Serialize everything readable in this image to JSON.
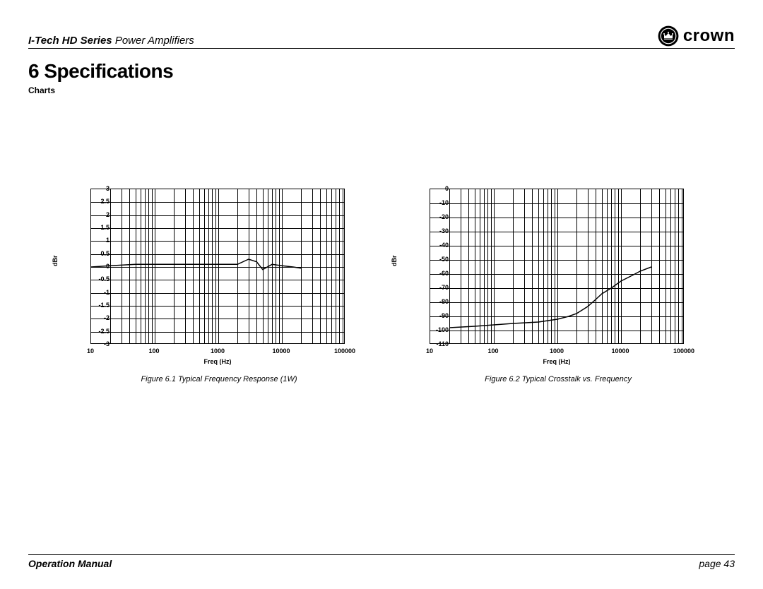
{
  "header": {
    "series": "I-Tech HD Series",
    "subtitle": "Power Amplifiers",
    "brand": "crown"
  },
  "section": {
    "number": "6",
    "title": "Specifications",
    "sub": "Charts"
  },
  "chart1": {
    "type": "line",
    "caption": "Figure 6.1 Typical Frequency Response (1W)",
    "ylabel": "dBr",
    "xlabel": "Freq (Hz)",
    "ylim": [
      -3,
      3
    ],
    "ytick_step": 0.5,
    "yticks": [
      "3",
      "2.5",
      "2",
      "1.5",
      "1",
      "0.5",
      "0",
      "-0.5",
      "-1",
      "-1.5",
      "-2",
      "-2.5",
      "-3"
    ],
    "xticks": [
      "10",
      "100",
      "1000",
      "10000",
      "100000"
    ],
    "xscale": "log",
    "grid_color": "#000000",
    "background_color": "#ffffff",
    "line_color": "#000000",
    "line_width": 1.5,
    "series": [
      {
        "freq": 10,
        "db": 0.0
      },
      {
        "freq": 20,
        "db": 0.05
      },
      {
        "freq": 50,
        "db": 0.1
      },
      {
        "freq": 100,
        "db": 0.1
      },
      {
        "freq": 200,
        "db": 0.1
      },
      {
        "freq": 500,
        "db": 0.1
      },
      {
        "freq": 1000,
        "db": 0.1
      },
      {
        "freq": 2000,
        "db": 0.1
      },
      {
        "freq": 3000,
        "db": 0.3
      },
      {
        "freq": 4000,
        "db": 0.2
      },
      {
        "freq": 5000,
        "db": -0.1
      },
      {
        "freq": 7000,
        "db": 0.1
      },
      {
        "freq": 10000,
        "db": 0.05
      },
      {
        "freq": 15000,
        "db": 0.0
      },
      {
        "freq": 20000,
        "db": -0.05
      }
    ]
  },
  "chart2": {
    "type": "line",
    "caption": "Figure 6.2 Typical Crosstalk vs. Frequency",
    "ylabel": "dBr",
    "xlabel": "Freq (Hz)",
    "ylim": [
      -110,
      0
    ],
    "ytick_step": 10,
    "yticks": [
      "0",
      "-10",
      "-20",
      "-30",
      "-40",
      "-50",
      "-60",
      "-70",
      "-80",
      "-90",
      "-100",
      "-110"
    ],
    "xticks": [
      "10",
      "100",
      "1000",
      "10000",
      "100000"
    ],
    "xscale": "log",
    "grid_color": "#000000",
    "background_color": "#ffffff",
    "line_color": "#000000",
    "line_width": 1.5,
    "series": [
      {
        "freq": 20,
        "db": -98
      },
      {
        "freq": 50,
        "db": -97
      },
      {
        "freq": 100,
        "db": -96
      },
      {
        "freq": 200,
        "db": -95
      },
      {
        "freq": 500,
        "db": -94
      },
      {
        "freq": 1000,
        "db": -92
      },
      {
        "freq": 1500,
        "db": -90
      },
      {
        "freq": 2000,
        "db": -88
      },
      {
        "freq": 3000,
        "db": -83
      },
      {
        "freq": 4000,
        "db": -78
      },
      {
        "freq": 5000,
        "db": -74
      },
      {
        "freq": 7000,
        "db": -70
      },
      {
        "freq": 10000,
        "db": -65
      },
      {
        "freq": 15000,
        "db": -61
      },
      {
        "freq": 20000,
        "db": -58
      },
      {
        "freq": 30000,
        "db": -55
      }
    ]
  },
  "footer": {
    "manual": "Operation Manual",
    "page": "page 43"
  },
  "fonts": {
    "tick_fontsize": 9,
    "caption_fontsize": 11,
    "section_title_fontsize": 28
  }
}
